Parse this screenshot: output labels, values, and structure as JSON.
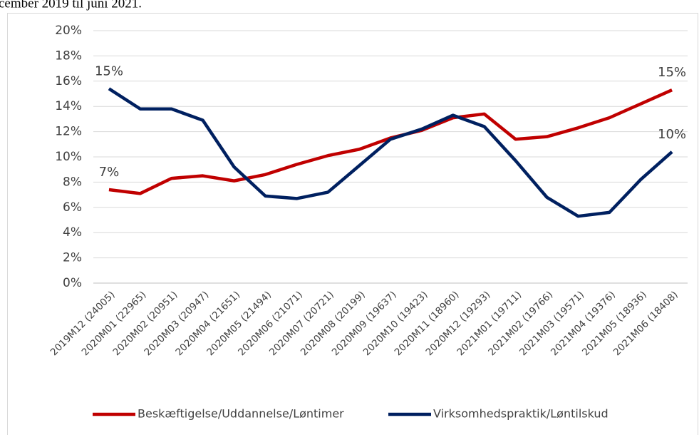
{
  "caption": "cember 2019 til juni 2021.",
  "chart_data": {
    "type": "line",
    "categories": [
      "2019M12 (24005)",
      "2020M01 (22965)",
      "2020M02 (20951)",
      "2020M03 (20947)",
      "2020M04 (21651)",
      "2020M05 (21494)",
      "2020M06 (21071)",
      "2020M07 (20721)",
      "2020M08 (20199)",
      "2020M09 (19637)",
      "2020M10 (19423)",
      "2020M11 (18960)",
      "2020M12 (19293)",
      "2021M01 (19711)",
      "2021M02 (19766)",
      "2021M03 (19571)",
      "2021M04 (19376)",
      "2021M05 (18936)",
      "2021M06 (18408)"
    ],
    "series": [
      {
        "name": "Beskæftigelse/Uddannelse/Løntimer",
        "color": "#c00000",
        "values": [
          7.4,
          7.1,
          8.3,
          8.5,
          8.1,
          8.6,
          9.4,
          10.1,
          10.6,
          11.5,
          12.1,
          13.1,
          13.4,
          11.4,
          11.6,
          12.3,
          13.1,
          14.2,
          15.3
        ],
        "value_labels": [
          "7%",
          null,
          null,
          null,
          null,
          null,
          null,
          null,
          null,
          null,
          null,
          null,
          null,
          null,
          null,
          null,
          null,
          null,
          "15%"
        ]
      },
      {
        "name": "Virksomhedspraktik/Løntilskud",
        "color": "#002060",
        "values": [
          15.4,
          13.8,
          13.8,
          12.9,
          9.2,
          6.9,
          6.7,
          7.2,
          9.3,
          11.4,
          12.2,
          13.3,
          12.4,
          9.7,
          6.8,
          5.3,
          5.6,
          8.2,
          10.4
        ],
        "value_labels": [
          "15%",
          null,
          null,
          null,
          null,
          null,
          null,
          null,
          null,
          null,
          null,
          null,
          null,
          null,
          null,
          null,
          null,
          null,
          "10%"
        ]
      }
    ],
    "ylim": [
      0,
      20
    ],
    "yticks": [
      {
        "value": 0,
        "label": "0%"
      },
      {
        "value": 2,
        "label": "2%"
      },
      {
        "value": 4,
        "label": "4%"
      },
      {
        "value": 6,
        "label": "6%"
      },
      {
        "value": 8,
        "label": "8%"
      },
      {
        "value": 10,
        "label": "10%"
      },
      {
        "value": 12,
        "label": "12%"
      },
      {
        "value": 14,
        "label": "14%"
      },
      {
        "value": 16,
        "label": "16%"
      },
      {
        "value": 18,
        "label": "18%"
      },
      {
        "value": 20,
        "label": "20%"
      }
    ],
    "grid": true,
    "legend": "bottom"
  }
}
